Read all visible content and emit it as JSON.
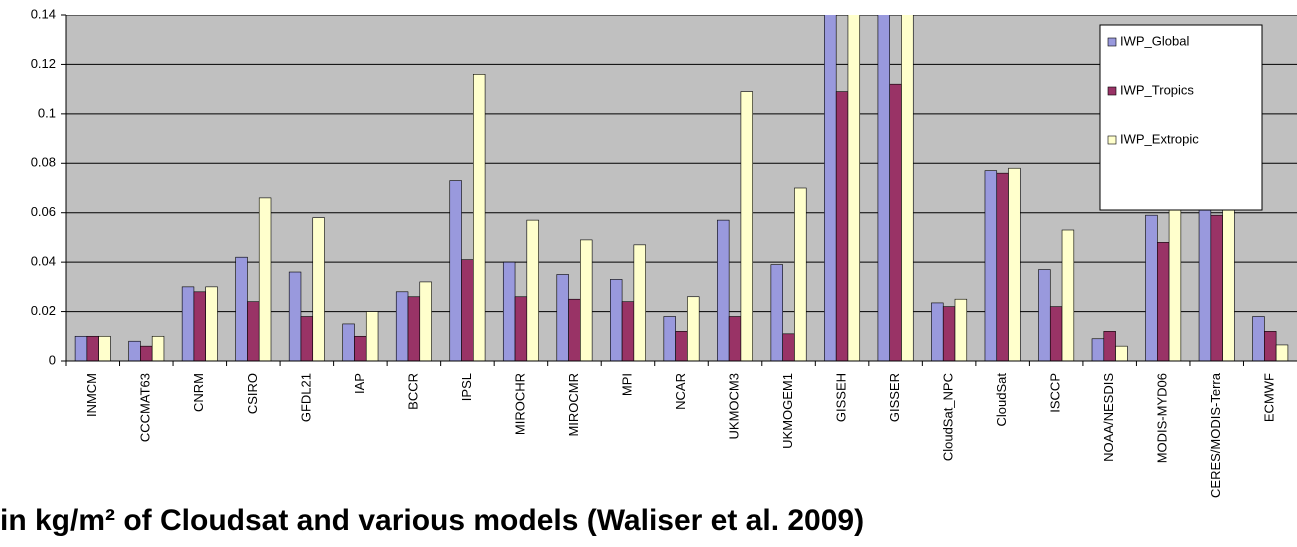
{
  "chart_data": {
    "type": "bar",
    "title": "in kg/m² of Cloudsat and various models (Waliser et al. 2009)",
    "categories": [
      "INMCM",
      "CCCMAT63",
      "CNRM",
      "CSIRO",
      "GFDL21",
      "IAP",
      "BCCR",
      "IPSL",
      "MIROCHR",
      "MIROCMR",
      "MPI",
      "NCAR",
      "UKMOCM3",
      "UKMOGEM1",
      "GISSEH",
      "GISSER",
      "CloudSat_NPC",
      "CloudSat",
      "ISCCP",
      "NOAA/NESDIS",
      "MODIS-MYD06",
      "CERES/MODIS-Terra",
      "ECMWF"
    ],
    "series": [
      {
        "name": "IWP_Global",
        "color": "#9999dd",
        "values": [
          0.01,
          0.008,
          0.03,
          0.042,
          0.036,
          0.015,
          0.028,
          0.073,
          0.04,
          0.035,
          0.033,
          0.018,
          0.057,
          0.039,
          0.15,
          0.15,
          0.0235,
          0.077,
          0.037,
          0.009,
          0.059,
          0.066,
          0.018
        ]
      },
      {
        "name": "IWP_Tropics",
        "color": "#993366",
        "values": [
          0.01,
          0.006,
          0.028,
          0.024,
          0.018,
          0.01,
          0.026,
          0.041,
          0.026,
          0.025,
          0.024,
          0.012,
          0.018,
          0.011,
          0.109,
          0.112,
          0.022,
          0.076,
          0.022,
          0.012,
          0.048,
          0.059,
          0.012
        ]
      },
      {
        "name": "IWP_Extropic",
        "color": "#ffffcc",
        "values": [
          0.01,
          0.01,
          0.03,
          0.066,
          0.058,
          0.02,
          0.032,
          0.116,
          0.057,
          0.049,
          0.047,
          0.026,
          0.109,
          0.07,
          0.15,
          0.15,
          0.025,
          0.078,
          0.053,
          0.006,
          0.072,
          0.073,
          0.0065
        ]
      }
    ],
    "ylim": [
      0,
      0.14
    ],
    "yticks": [
      0,
      0.02,
      0.04,
      0.06,
      0.08,
      0.1,
      0.12,
      0.14
    ],
    "grid": true,
    "legend": "top-right",
    "background": "#c0c0c0"
  }
}
